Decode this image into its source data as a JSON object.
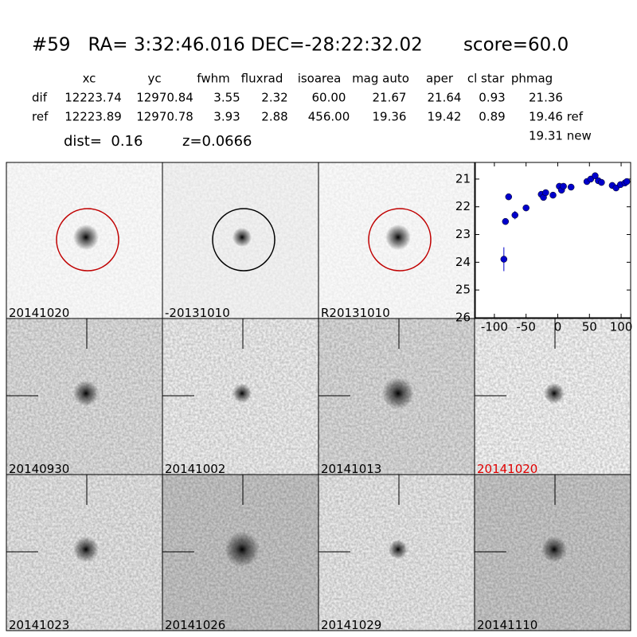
{
  "header": {
    "title": "#59   RA= 3:32:46.016 DEC=-28:22:32.02       score=60.0",
    "columns": [
      "xc",
      "yc",
      "fwhm",
      "fluxrad",
      "isoarea",
      "mag auto",
      "aper",
      "cl star",
      "phmag"
    ],
    "rows": [
      [
        "dif",
        "12223.74",
        "12970.84",
        "3.55",
        "2.32",
        "60.00",
        "21.67",
        "21.64",
        "0.93",
        "21.36"
      ],
      [
        "ref",
        "12223.89",
        "12970.78",
        "3.93",
        "2.88",
        "456.00",
        "19.36",
        "19.42",
        "0.89",
        "19.46 ref"
      ]
    ],
    "extra": "19.31 new",
    "dist": "dist=  0.16",
    "z": "z=0.0666"
  },
  "stamps": [
    {
      "label": "20141020"
    },
    {
      "label": "-20131010"
    },
    {
      "label": "R20131010"
    },
    {
      "label": "20140930"
    },
    {
      "label": "20141002"
    },
    {
      "label": "20141013"
    },
    {
      "label": "20141020"
    },
    {
      "label": "20141023"
    },
    {
      "label": "20141026"
    },
    {
      "label": "20141029"
    },
    {
      "label": "20141110"
    }
  ],
  "chart_data": {
    "type": "scatter",
    "color": "#0000cc",
    "y_inverted": true,
    "xlim": [
      -130,
      115
    ],
    "ylim": [
      20.4,
      26
    ],
    "xticks": [
      -100,
      -50,
      0,
      50,
      100
    ],
    "yticks": [
      21,
      22,
      23,
      24,
      25,
      26
    ],
    "series": [
      {
        "x": [
          -85,
          -82.5,
          -77.5,
          -67.5,
          -50,
          -26,
          -22.5,
          -19,
          -7.5,
          2.5,
          6,
          9,
          21,
          46,
          52,
          59,
          64,
          69,
          86,
          92,
          99,
          106,
          109
        ],
        "values": [
          23.89,
          22.53,
          21.64,
          22.3,
          22.04,
          21.55,
          21.66,
          21.49,
          21.58,
          21.26,
          21.4,
          21.26,
          21.29,
          21.09,
          21.0,
          20.88,
          21.06,
          21.12,
          21.23,
          21.32,
          21.2,
          21.14,
          21.09
        ],
        "errors": [
          0.43,
          0.1,
          0.06,
          0.15,
          0.06,
          0.06,
          0.06,
          0.06,
          0.05,
          0.05,
          0.05,
          0.05,
          0.04,
          0.04,
          0.04,
          0.04,
          0.04,
          0.04,
          0.04,
          0.04,
          0.04,
          0.04,
          0.04
        ]
      }
    ]
  }
}
